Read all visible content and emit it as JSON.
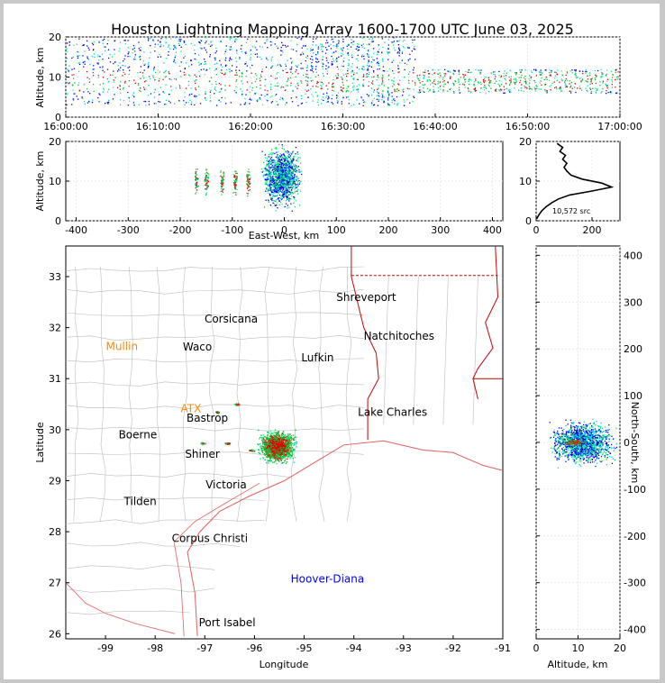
{
  "title": "Houston Lightning Mapping Array 1600-1700 UTC June 03, 2025",
  "colors": {
    "points": [
      "#0000ff",
      "#0000cc",
      "#00ccff",
      "#00ff88",
      "#00cc44",
      "#22aa22",
      "#ff0000",
      "#cc0000"
    ],
    "state_lines": "#cc0000",
    "county_lines": "#bbbbbb",
    "coast": "#e06060",
    "station_orange": "#ff8800",
    "station_green": "#33cc33",
    "station_blue": "#0000ff"
  },
  "chart_data": [
    {
      "id": "time_height",
      "type": "scatter",
      "ylabel": "Altitude, km",
      "xlabel": "",
      "ylim": [
        0,
        20
      ],
      "yticks": [
        "0",
        "10",
        "20"
      ],
      "xticks": [
        "16:00:00",
        "16:10:00",
        "16:20:00",
        "16:30:00",
        "16:40:00",
        "16:50:00",
        "17:00:00"
      ],
      "x_range_minutes": [
        0,
        60
      ],
      "grid": true
    },
    {
      "id": "ew_height",
      "type": "scatter",
      "xlabel": "East-West, km",
      "ylabel": "Altitude, km",
      "xlim": [
        -420,
        420
      ],
      "ylim": [
        0,
        20
      ],
      "xticks": [
        "-400",
        "-300",
        "-200",
        "-100",
        "0",
        "100",
        "200",
        "300",
        "400"
      ],
      "yticks": [
        "0",
        "10",
        "20"
      ],
      "grid": true
    },
    {
      "id": "altitude_histogram",
      "type": "line",
      "xlim": [
        0,
        300
      ],
      "ylim": [
        0,
        20
      ],
      "xticks": [
        "0",
        "200"
      ],
      "yticks": [
        "0",
        "10",
        "20"
      ],
      "annotation": "10,572 src",
      "profile": [
        [
          2,
          0.5
        ],
        [
          10,
          1.5
        ],
        [
          20,
          2.5
        ],
        [
          35,
          3.5
        ],
        [
          55,
          4.5
        ],
        [
          80,
          5.5
        ],
        [
          120,
          6.5
        ],
        [
          200,
          7.5
        ],
        [
          270,
          8.5
        ],
        [
          235,
          9.5
        ],
        [
          165,
          10.5
        ],
        [
          125,
          11.5
        ],
        [
          110,
          12.5
        ],
        [
          100,
          13.5
        ],
        [
          110,
          14.5
        ],
        [
          95,
          15.5
        ],
        [
          105,
          16.5
        ],
        [
          85,
          17.5
        ],
        [
          95,
          18.5
        ],
        [
          75,
          19.5
        ]
      ]
    },
    {
      "id": "plan_view",
      "type": "scatter",
      "xlabel": "Longitude",
      "ylabel": "Latitude",
      "xlim": [
        -99.8,
        -91
      ],
      "ylim": [
        25.9,
        33.6
      ],
      "xticks": [
        "-99",
        "-98",
        "-97",
        "-96",
        "-95",
        "-94",
        "-93",
        "-92",
        "-91"
      ],
      "yticks": [
        "26",
        "27",
        "28",
        "29",
        "30",
        "31",
        "32",
        "33"
      ],
      "cities": [
        {
          "name": "Shreveport",
          "lon": -93.75,
          "lat": 32.52,
          "color": "black"
        },
        {
          "name": "Corsicana",
          "lon": -96.47,
          "lat": 32.1,
          "color": "black"
        },
        {
          "name": "Natchitoches",
          "lon": -93.09,
          "lat": 31.76,
          "color": "black"
        },
        {
          "name": "Mullin",
          "lon": -98.67,
          "lat": 31.56,
          "color": "orange"
        },
        {
          "name": "Waco",
          "lon": -97.15,
          "lat": 31.55,
          "color": "black"
        },
        {
          "name": "Lufkin",
          "lon": -94.73,
          "lat": 31.34,
          "color": "black"
        },
        {
          "name": "ATX",
          "lon": -97.28,
          "lat": 30.34,
          "color": "orange"
        },
        {
          "name": "Lake Charles",
          "lon": -93.22,
          "lat": 30.27,
          "color": "black"
        },
        {
          "name": "Bastrop",
          "lon": -96.95,
          "lat": 30.16,
          "color": "black"
        },
        {
          "name": "Boerne",
          "lon": -98.35,
          "lat": 29.83,
          "color": "black"
        },
        {
          "name": "Shiner",
          "lon": -97.05,
          "lat": 29.45,
          "color": "black"
        },
        {
          "name": "Victoria",
          "lon": -96.57,
          "lat": 28.85,
          "color": "black"
        },
        {
          "name": "Tilden",
          "lon": -98.3,
          "lat": 28.52,
          "color": "black"
        },
        {
          "name": "Corpus Christi",
          "lon": -96.9,
          "lat": 27.8,
          "color": "black"
        },
        {
          "name": "Hoover-Diana",
          "lon": -94.53,
          "lat": 27.0,
          "color": "blue"
        },
        {
          "name": "Port Isabel",
          "lon": -96.55,
          "lat": 26.15,
          "color": "black"
        }
      ]
    },
    {
      "id": "ns_height",
      "type": "scatter",
      "xlabel": "Altitude, km",
      "ylabel": "North-South, km",
      "xlim": [
        0,
        20
      ],
      "ylim": [
        -420,
        420
      ],
      "xticks": [
        "0",
        "10",
        "20"
      ],
      "yticks": [
        "-400",
        "-300",
        "-200",
        "-100",
        "0",
        "100",
        "200",
        "300",
        "400"
      ],
      "grid": true
    }
  ]
}
